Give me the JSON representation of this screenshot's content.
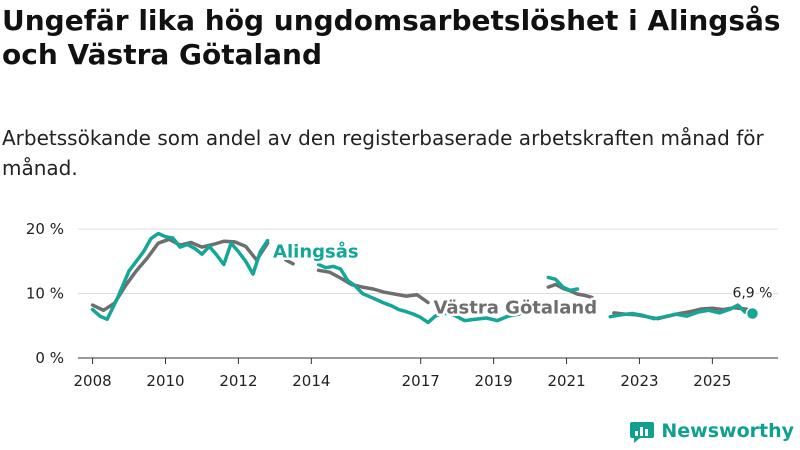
{
  "title": "Ungefär lika hög ungdomsarbetslöshet i Alingsås och Västra Götaland",
  "subtitle": "Arbetssökande som andel av den registerbaserade arbetskraften månad för månad.",
  "brand": {
    "name": "Newsworthy",
    "icon": "newsworthy-logo-icon"
  },
  "colors": {
    "alingsas": "#14a697",
    "vastra_gotaland": "#6e6e6e",
    "grid": "#dcdcdc",
    "axis": "#333333"
  },
  "chart_data": {
    "type": "line",
    "title": "Ungefär lika hög ungdomsarbetslöshet i Alingsås och Västra Götaland",
    "subtitle": "Arbetssökande som andel av den registerbaserade arbetskraften månad för månad.",
    "xlabel": "",
    "ylabel": "",
    "xlim": [
      2007.6,
      2026.8
    ],
    "ylim": [
      0,
      20
    ],
    "x_ticks": [
      2008,
      2010,
      2012,
      2014,
      2017,
      2019,
      2021,
      2023,
      2025
    ],
    "x_tick_labels": [
      "2008",
      "2010",
      "2012",
      "2014",
      "2017",
      "2019",
      "2021",
      "2023",
      "2025"
    ],
    "y_ticks": [
      0,
      10,
      20
    ],
    "y_tick_labels": [
      "0 %",
      "10 %",
      "20 %"
    ],
    "grid": true,
    "end_label": "6,9 %",
    "series": [
      {
        "name": "Västra Götaland",
        "x": [
          2008.0,
          2008.3,
          2008.6,
          2008.9,
          2009.2,
          2009.5,
          2009.8,
          2010.1,
          2010.4,
          2010.7,
          2011.0,
          2011.3,
          2011.6,
          2011.9,
          2012.2,
          2012.5,
          2012.8,
          null,
          2013.3,
          2013.5,
          null,
          2014.2,
          2014.5,
          2014.8,
          2015.1,
          2015.4,
          2015.7,
          2016.0,
          2016.3,
          2016.6,
          2016.9,
          2017.2,
          null,
          2020.5,
          2020.7,
          2020.9,
          2021.1,
          2021.3,
          2021.5,
          2021.7,
          null,
          2022.3,
          2022.6,
          2022.9,
          2023.2,
          2023.5,
          2023.8,
          2024.1,
          2024.4,
          2024.7,
          2025.0,
          2025.3,
          2025.6,
          2025.9,
          2026.1
        ],
        "y": [
          8.2,
          7.4,
          8.5,
          11.2,
          13.5,
          15.5,
          17.8,
          18.4,
          17.5,
          17.9,
          17.2,
          17.6,
          18.1,
          18.0,
          17.3,
          15.2,
          17.8,
          null,
          15.2,
          14.6,
          null,
          13.6,
          13.3,
          12.4,
          11.4,
          11.0,
          10.7,
          10.2,
          9.9,
          9.6,
          9.8,
          8.6,
          null,
          11.0,
          11.4,
          10.8,
          10.4,
          9.9,
          9.7,
          9.4,
          null,
          7.0,
          6.8,
          6.7,
          6.4,
          6.1,
          6.5,
          6.9,
          7.2,
          7.6,
          7.7,
          7.5,
          7.8,
          7.6,
          7.3
        ],
        "color": "#6e6e6e"
      },
      {
        "name": "Alingsås",
        "x": [
          2008.0,
          2008.2,
          2008.4,
          2008.7,
          2009.0,
          2009.2,
          2009.4,
          2009.6,
          2009.8,
          2010.0,
          2010.2,
          2010.4,
          2010.6,
          2010.8,
          2011.0,
          2011.2,
          2011.4,
          2011.6,
          2011.8,
          2012.0,
          2012.2,
          2012.4,
          2012.6,
          2012.8,
          null,
          2014.2,
          2014.4,
          2014.6,
          2014.8,
          2015.0,
          2015.2,
          2015.4,
          2015.6,
          2015.8,
          2016.0,
          2016.2,
          2016.4,
          2016.6,
          2016.8,
          2017.0,
          2017.2,
          2017.4,
          2017.6,
          2017.9,
          2018.2,
          2018.5,
          2018.8,
          2019.1,
          2019.4,
          2019.7,
          null,
          2020.5,
          2020.7,
          2020.9,
          2021.1,
          2021.3,
          null,
          2022.2,
          2022.5,
          2022.8,
          2023.1,
          2023.4,
          2023.7,
          2024.0,
          2024.3,
          2024.6,
          2024.9,
          2025.2,
          2025.5,
          2025.7,
          2025.9,
          2026.1
        ],
        "y": [
          7.5,
          6.5,
          6.0,
          9.5,
          13.5,
          15.0,
          16.5,
          18.5,
          19.3,
          18.8,
          18.6,
          17.2,
          17.6,
          17.0,
          16.1,
          17.3,
          16.0,
          14.5,
          17.8,
          16.5,
          15.0,
          13.0,
          16.5,
          18.2,
          null,
          14.5,
          14.0,
          14.2,
          13.8,
          12.0,
          11.2,
          10.0,
          9.5,
          9.0,
          8.5,
          8.1,
          7.5,
          7.2,
          6.8,
          6.3,
          5.5,
          6.5,
          7.0,
          6.7,
          5.8,
          6.0,
          6.2,
          5.8,
          6.5,
          6.8,
          null,
          12.5,
          12.2,
          11.0,
          10.5,
          10.7,
          null,
          6.4,
          6.7,
          6.9,
          6.6,
          6.1,
          6.4,
          6.8,
          6.5,
          7.1,
          7.4,
          7.0,
          7.6,
          8.2,
          7.1,
          6.9
        ],
        "color": "#14a697"
      }
    ]
  }
}
